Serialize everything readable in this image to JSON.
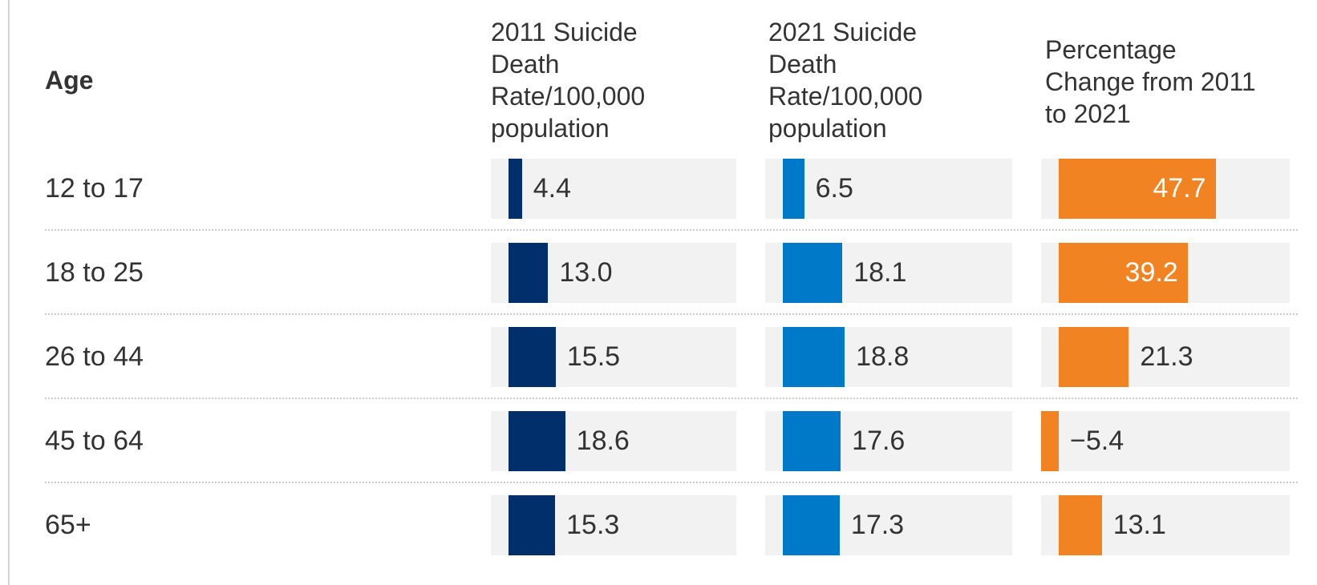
{
  "chart_data": {
    "type": "table",
    "columns": [
      "Age",
      "2011 Suicide Death Rate/100,000 population",
      "2021 Suicide Death Rate/100,000 population",
      "Percentage Change from 2011 to 2021"
    ],
    "header_lines": {
      "age": "Age",
      "c1": [
        "2011 Suicide",
        "Death",
        "Rate/100,000",
        "population"
      ],
      "c2": [
        "2021 Suicide",
        "Death",
        "Rate/100,000",
        "population"
      ],
      "c3": [
        "Percentage",
        "Change from 2011",
        "to 2021"
      ]
    },
    "categories": [
      "12 to 17",
      "18 to 25",
      "26 to 44",
      "45 to 64",
      "65+"
    ],
    "series": [
      {
        "name": "2011 Suicide Death Rate/100,000 population",
        "values": [
          4.4,
          13.0,
          15.5,
          18.6,
          15.3
        ],
        "labels": [
          "4.4",
          "13.0",
          "15.5",
          "18.6",
          "15.3"
        ],
        "color": "#002f6c"
      },
      {
        "name": "2021 Suicide Death Rate/100,000 population",
        "values": [
          6.5,
          18.1,
          18.8,
          17.6,
          17.3
        ],
        "labels": [
          "6.5",
          "18.1",
          "18.8",
          "17.6",
          "17.3"
        ],
        "color": "#0079c8"
      },
      {
        "name": "Percentage Change from 2011 to 2021",
        "values": [
          47.7,
          39.2,
          21.3,
          -5.4,
          13.1
        ],
        "labels": [
          "47.7",
          "39.2",
          "21.3",
          "−5.4",
          "13.1"
        ],
        "color": "#f28322"
      }
    ],
    "cell_background": "#f2f2f2",
    "text_color": "#333333"
  }
}
